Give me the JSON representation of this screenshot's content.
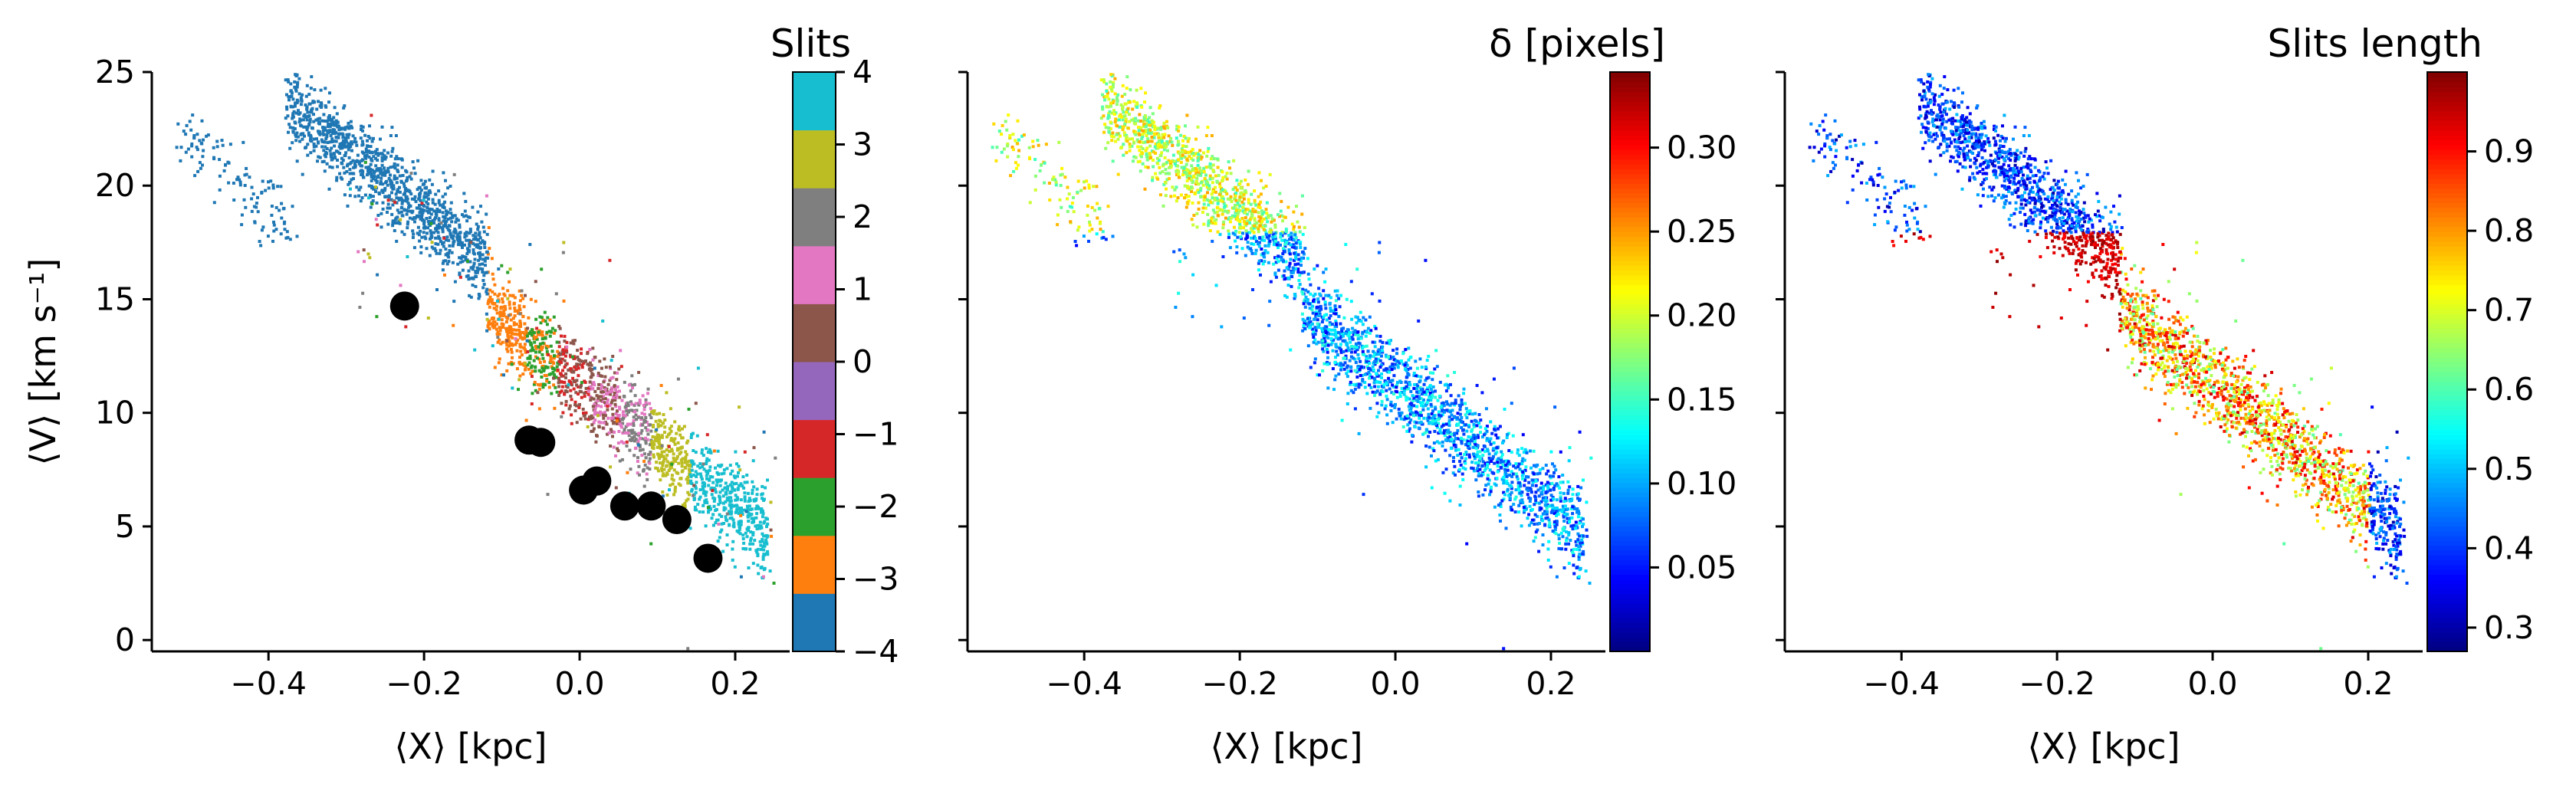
{
  "chart_data": [
    {
      "type": "scatter",
      "panel": "left",
      "xlabel": "⟨X⟩ [kpc]",
      "ylabel": "⟨V⟩ [km s⁻¹]",
      "xlim": [
        -0.55,
        0.27
      ],
      "ylim": [
        -0.5,
        25.0
      ],
      "xticks": [
        -0.4,
        -0.2,
        0.0,
        0.2
      ],
      "xtick_labels": [
        "−0.4",
        "−0.2",
        "0.0",
        "0.2"
      ],
      "yticks": [
        0,
        5,
        10,
        15,
        20,
        25
      ],
      "ytick_labels": [
        "0",
        "5",
        "10",
        "15",
        "20",
        "25"
      ],
      "grid": false,
      "color_variable": "Slits",
      "colorbar": {
        "title": "Slits",
        "type": "discrete",
        "range": [
          -4,
          4
        ],
        "ticks": [
          4,
          3,
          2,
          1,
          0,
          -1,
          -2,
          -3,
          -4
        ],
        "tick_labels": [
          "4",
          "3",
          "2",
          "1",
          "0",
          "−1",
          "−2",
          "−3",
          "−4"
        ],
        "colors": [
          "#1f77b4",
          "#ff7f0e",
          "#2ca02c",
          "#d62728",
          "#9467bd",
          "#8c564b",
          "#e377c2",
          "#7f7f7f",
          "#bcbd22",
          "#17becf"
        ]
      },
      "markers": {
        "color": "#000000",
        "points": [
          {
            "x": -0.225,
            "y": 14.7
          },
          {
            "x": -0.065,
            "y": 8.8
          },
          {
            "x": -0.05,
            "y": 8.7
          },
          {
            "x": 0.005,
            "y": 6.6
          },
          {
            "x": 0.022,
            "y": 7.0
          },
          {
            "x": 0.058,
            "y": 5.9
          },
          {
            "x": 0.092,
            "y": 5.9
          },
          {
            "x": 0.125,
            "y": 5.3
          },
          {
            "x": 0.165,
            "y": 3.6
          }
        ]
      }
    },
    {
      "type": "scatter",
      "panel": "middle",
      "xlabel": "⟨X⟩ [kpc]",
      "xlim": [
        -0.55,
        0.27
      ],
      "ylim": [
        -0.5,
        25.0
      ],
      "xticks": [
        -0.4,
        -0.2,
        0.0,
        0.2
      ],
      "xtick_labels": [
        "−0.4",
        "−0.2",
        "0.0",
        "0.2"
      ],
      "yticks": [
        0,
        5,
        10,
        15,
        20,
        25
      ],
      "grid": false,
      "color_variable": "δ [pixels]",
      "colorbar": {
        "title": "δ [pixels]",
        "type": "continuous",
        "colormap": "jet",
        "range": [
          0.0,
          0.345
        ],
        "ticks": [
          0.05,
          0.1,
          0.15,
          0.2,
          0.25,
          0.3
        ],
        "tick_labels": [
          "0.05",
          "0.10",
          "0.15",
          "0.20",
          "0.25",
          "0.30"
        ]
      }
    },
    {
      "type": "scatter",
      "panel": "right",
      "xlabel": "⟨X⟩ [kpc]",
      "xlim": [
        -0.55,
        0.27
      ],
      "ylim": [
        -0.5,
        25.0
      ],
      "xticks": [
        -0.4,
        -0.2,
        0.0,
        0.2
      ],
      "xtick_labels": [
        "−0.4",
        "−0.2",
        "0.0",
        "0.2"
      ],
      "yticks": [
        0,
        5,
        10,
        15,
        20,
        25
      ],
      "grid": false,
      "color_variable": "Slits length",
      "colorbar": {
        "title": "Slits length",
        "type": "continuous",
        "colormap": "jet",
        "range": [
          0.27,
          1.0
        ],
        "ticks": [
          0.3,
          0.4,
          0.5,
          0.6,
          0.7,
          0.8,
          0.9
        ],
        "tick_labels": [
          "0.3",
          "0.4",
          "0.5",
          "0.6",
          "0.7",
          "0.8",
          "0.9"
        ]
      }
    }
  ]
}
